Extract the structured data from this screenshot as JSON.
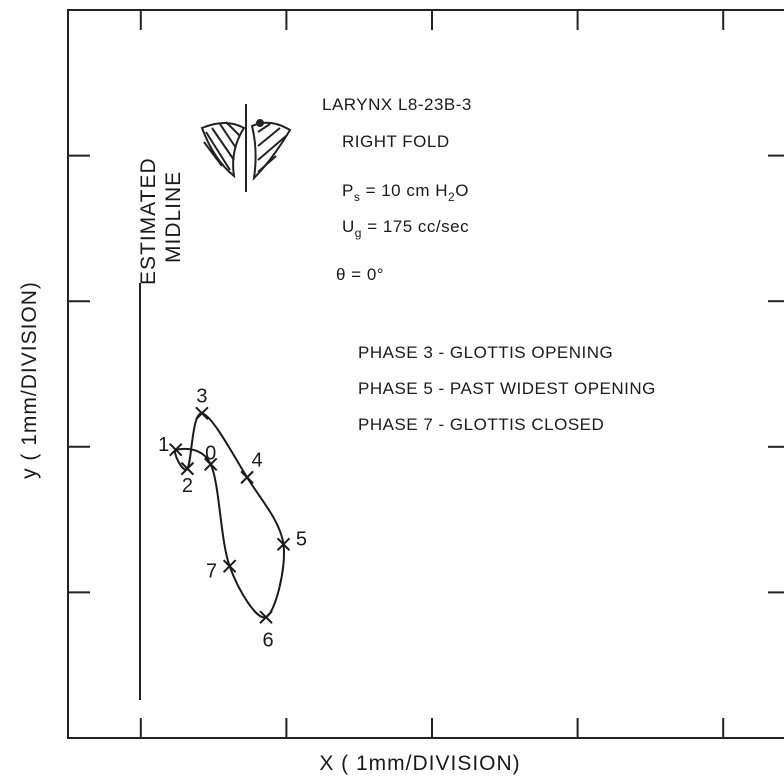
{
  "chart_data": {
    "type": "trajectory",
    "x_label": "X ( 1mm/DIVISION)",
    "y_label": "y ( 1mm/DIVISION)",
    "xlim": [
      0,
      4.9
    ],
    "ylim": [
      0,
      5
    ],
    "xticks": [
      0.5,
      1.5,
      2.5,
      3.5,
      4.5
    ],
    "yticks": [
      1,
      2,
      3,
      4
    ],
    "color": "#1a1a1a",
    "midline_label": [
      "ESTIMATED",
      "MIDLINE"
    ],
    "annotations": {
      "larynx": "LARYNX  L8-23B-3",
      "fold": "RIGHT FOLD",
      "pressure": [
        "P",
        "s",
        "  =  10 cm H",
        "2",
        "O"
      ],
      "flow": [
        "U",
        "g",
        " = 175 cc/sec"
      ],
      "angle": "θ = 0°",
      "phases": [
        "PHASE 3 - GLOTTIS OPENING",
        "PHASE 5 - PAST WIDEST OPENING",
        "PHASE 7 - GLOTTIS CLOSED"
      ]
    },
    "point_labels": [
      "0",
      "1",
      "2",
      "3",
      "4",
      "5",
      "6",
      "7"
    ],
    "x": [
      0.98,
      0.74,
      0.82,
      0.92,
      1.23,
      1.48,
      1.36,
      1.11
    ],
    "y": [
      1.88,
      1.98,
      1.85,
      2.23,
      1.79,
      1.33,
      0.83,
      1.18
    ]
  }
}
